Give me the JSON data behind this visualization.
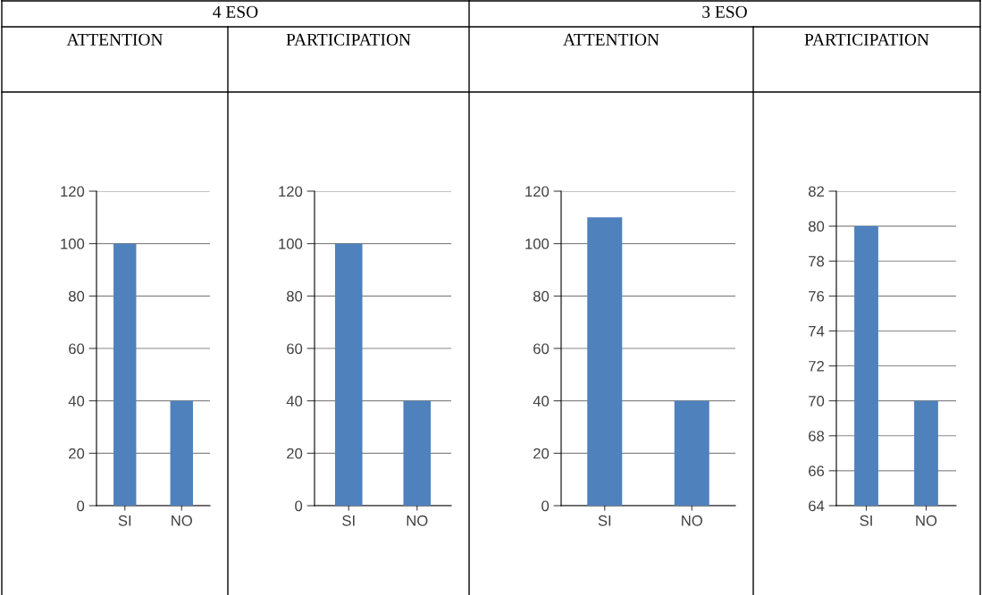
{
  "chart_data": [
    {
      "type": "bar",
      "title": "4 ESO",
      "subtitle": "ATTENTION",
      "categories": [
        "SI",
        "NO"
      ],
      "values": [
        100,
        40
      ],
      "color": "#4f81bd",
      "ylim": [
        0,
        120
      ],
      "yticks": [
        0,
        20,
        40,
        60,
        80,
        100,
        120
      ],
      "grid": "y"
    },
    {
      "type": "bar",
      "subtitle": "PARTICIPATION",
      "categories": [
        "SI",
        "NO"
      ],
      "values": [
        100,
        40
      ],
      "color": "#4f81bd",
      "ylim": [
        0,
        120
      ],
      "yticks": [
        0,
        20,
        40,
        60,
        80,
        100,
        120
      ],
      "grid": "y"
    },
    {
      "type": "bar",
      "title": "3 ESO",
      "subtitle": "ATTENTION",
      "categories": [
        "SI",
        "NO"
      ],
      "values": [
        110,
        40
      ],
      "color": "#4f81bd",
      "ylim": [
        0,
        120
      ],
      "yticks": [
        0,
        20,
        40,
        60,
        80,
        100,
        120
      ],
      "grid": "y"
    },
    {
      "type": "bar",
      "subtitle": "PARTICIPATION",
      "categories": [
        "SI",
        "NO"
      ],
      "values": [
        80,
        70
      ],
      "color": "#4f81bd",
      "ylim": [
        64,
        82
      ],
      "yticks": [
        64,
        66,
        68,
        70,
        72,
        74,
        76,
        78,
        80,
        82
      ],
      "grid": "y"
    }
  ]
}
